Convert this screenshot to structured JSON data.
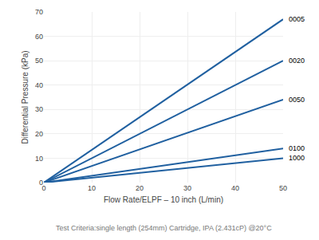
{
  "chart_data": {
    "type": "line",
    "xlabel": "Flow Rate/ELPF – 10 inch (L/min)",
    "ylabel": "Differential Pressure (kPa)",
    "subtitle": "Test Criteria:single length (254mm) Cartridge, IPA (2.431cP) @20°C",
    "x": [
      0,
      50
    ],
    "series": [
      {
        "name": "0005",
        "color": "#2060a0",
        "values": [
          0,
          67
        ]
      },
      {
        "name": "0020",
        "color": "#2060a0",
        "values": [
          0,
          50
        ]
      },
      {
        "name": "0050",
        "color": "#2060a0",
        "values": [
          0,
          34
        ]
      },
      {
        "name": "0100",
        "color": "#2060a0",
        "values": [
          0,
          14
        ]
      },
      {
        "name": "1000",
        "color": "#2060a0",
        "values": [
          0,
          10
        ]
      }
    ],
    "xlim": [
      0,
      50
    ],
    "ylim": [
      0,
      70
    ],
    "xticks": [
      0,
      10,
      20,
      30,
      40,
      50
    ],
    "yticks": [
      0,
      10,
      20,
      30,
      40,
      50,
      60,
      70
    ],
    "grid": true
  }
}
